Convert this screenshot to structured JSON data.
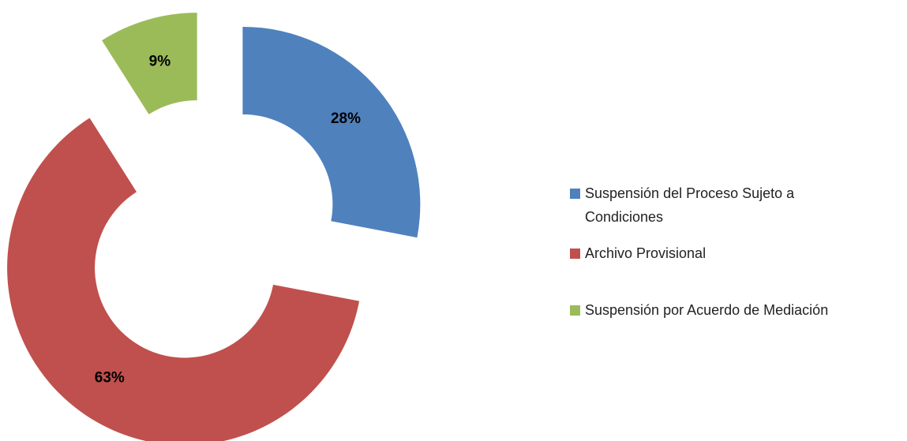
{
  "chart_data": {
    "type": "donut",
    "categories": [
      "Suspensión del Proceso Sujeto a Condiciones",
      "Archivo Provisional",
      "Suspensión por Acuerdo de Mediación"
    ],
    "values": [
      28,
      63,
      9
    ],
    "value_labels": [
      "28%",
      "63%",
      "9%"
    ],
    "colors": [
      "#4f81bd",
      "#c0504d",
      "#9bbb59"
    ],
    "legend": "right"
  }
}
